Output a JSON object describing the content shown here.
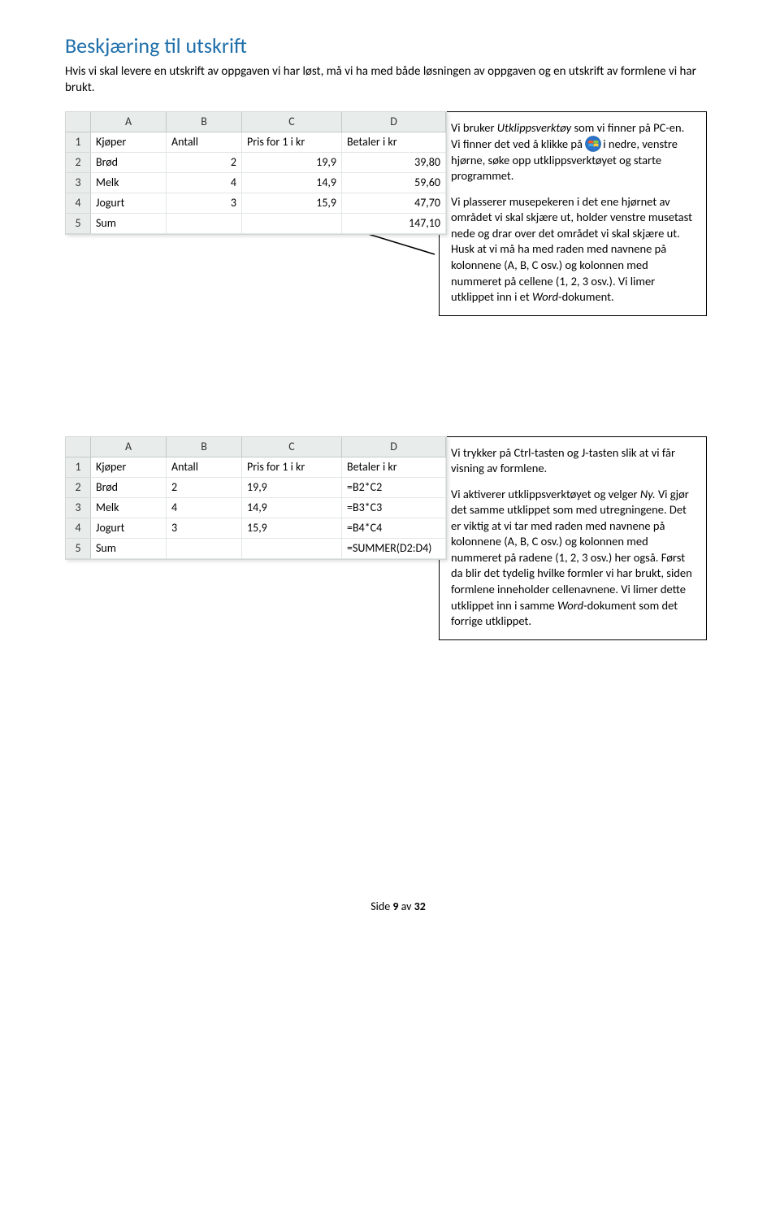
{
  "title": "Beskjæring til utskrift",
  "intro": "Hvis vi skal levere en utskrift av oppgaven vi har løst, må vi ha med både løsningen av oppgaven og en utskrift av formlene vi har brukt.",
  "spreadsheet_cols": [
    "A",
    "B",
    "C",
    "D"
  ],
  "ss1": {
    "width_A": 80,
    "width_B": 80,
    "width_C": 110,
    "width_D": 115,
    "rows": [
      {
        "n": "1",
        "A": "Kjøper",
        "B": "Antall",
        "C": "Pris for 1 i kr",
        "D": "Betaler i kr",
        "align": [
          "txt",
          "txt",
          "txt",
          "txt"
        ]
      },
      {
        "n": "2",
        "A": "Brød",
        "B": "2",
        "C": "19,9",
        "D": "39,80",
        "align": [
          "txt",
          "num",
          "num",
          "num"
        ]
      },
      {
        "n": "3",
        "A": "Melk",
        "B": "4",
        "C": "14,9",
        "D": "59,60",
        "align": [
          "txt",
          "num",
          "num",
          "num"
        ]
      },
      {
        "n": "4",
        "A": "Jogurt",
        "B": "3",
        "C": "15,9",
        "D": "47,70",
        "align": [
          "txt",
          "num",
          "num",
          "num"
        ]
      },
      {
        "n": "5",
        "A": "Sum",
        "B": "",
        "C": "",
        "D": "147,10",
        "align": [
          "txt",
          "num",
          "num",
          "num"
        ]
      }
    ]
  },
  "box1": {
    "p1a": "Vi bruker ",
    "p1b": "Utklippsverktøy",
    "p1c": " som vi finner på PC-en. Vi finner det ved å klikke på ",
    "p1d": "i nedre, venstre hjørne, søke opp utklippsverktøyet og starte programmet.",
    "p2": "Vi plasserer musepekeren i det ene hjørnet av området vi skal skjære ut, holder venstre musetast nede og drar over det området vi skal skjære ut. Husk at vi må ha med raden med navnene på kolonnene (A, B, C osv.) og kolonnen med nummeret på cellene (1, 2, 3 osv.). Vi limer utklippet inn i et ",
    "p2b": "Word",
    "p2c": "-dokument."
  },
  "ss2": {
    "rows": [
      {
        "n": "1",
        "A": "Kjøper",
        "B": "Antall",
        "C": "Pris for 1 i kr",
        "D": "Betaler i kr",
        "align": [
          "txt",
          "txt",
          "txt",
          "txt"
        ]
      },
      {
        "n": "2",
        "A": "Brød",
        "B": "2",
        "C": "19,9",
        "D": "=B2*C2",
        "align": [
          "txt",
          "txt",
          "txt",
          "txt"
        ]
      },
      {
        "n": "3",
        "A": "Melk",
        "B": "4",
        "C": "14,9",
        "D": "=B3*C3",
        "align": [
          "txt",
          "txt",
          "txt",
          "txt"
        ]
      },
      {
        "n": "4",
        "A": "Jogurt",
        "B": "3",
        "C": "15,9",
        "D": "=B4*C4",
        "align": [
          "txt",
          "txt",
          "txt",
          "txt"
        ]
      },
      {
        "n": "5",
        "A": "Sum",
        "B": "",
        "C": "",
        "D": "=SUMMER(D2:D4)",
        "align": [
          "txt",
          "txt",
          "txt",
          "txt"
        ]
      }
    ]
  },
  "box2": {
    "p1": "Vi trykker på Ctrl-tasten og J-tasten slik at vi får visning av formlene.",
    "p2a": "Vi aktiverer utklippsverktøyet og velger ",
    "p2b": "Ny.",
    "p2c": " Vi gjør det samme utklippet som med utregningene. Det er viktig at vi tar med raden med navnene på kolonnene (A, B, C osv.) og kolonnen med nummeret på radene (1, 2, 3 osv.) her også. Først da blir det tydelig hvilke formler vi har brukt, siden formlene inneholder cellenavnene. Vi limer dette utklippet inn i samme ",
    "p2d": "Word",
    "p2e": "-dokument som det forrige utklippet."
  },
  "footer_pre": "Side ",
  "footer_num": "9",
  "footer_post": " av ",
  "footer_total": "32",
  "colors": {
    "title": "#1f6faa",
    "hdr_bg": "#e8edec",
    "hdr_border": "#c3c9c8",
    "cell_border": "#e1e6e5",
    "box_border": "#000000"
  }
}
